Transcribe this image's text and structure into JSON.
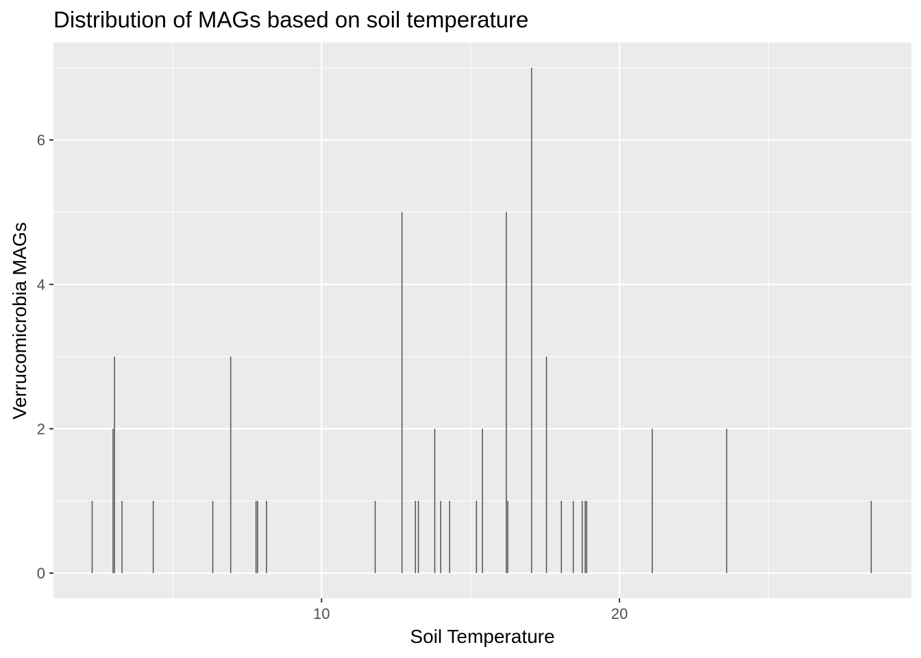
{
  "chart_data": {
    "type": "bar",
    "title": "Distribution of MAGs based on soil temperature",
    "xlabel": "Soil Temperature",
    "ylabel": "Verrucomicrobia MAGs",
    "xlim": [
      1.0,
      29.8
    ],
    "ylim": [
      -0.35,
      7.35
    ],
    "x_ticks": [
      10,
      20
    ],
    "y_ticks": [
      0,
      2,
      4,
      6
    ],
    "grid": true,
    "bar_color": "#595959",
    "panel_color": "#ebebeb",
    "grid_color": "#ffffff",
    "bars": [
      {
        "x": 2.3,
        "y": 1
      },
      {
        "x": 3.0,
        "y": 2
      },
      {
        "x": 3.05,
        "y": 3
      },
      {
        "x": 3.3,
        "y": 1
      },
      {
        "x": 4.35,
        "y": 1
      },
      {
        "x": 6.35,
        "y": 1
      },
      {
        "x": 6.95,
        "y": 3
      },
      {
        "x": 7.8,
        "y": 1
      },
      {
        "x": 7.85,
        "y": 1
      },
      {
        "x": 8.15,
        "y": 1
      },
      {
        "x": 11.8,
        "y": 1
      },
      {
        "x": 12.7,
        "y": 5
      },
      {
        "x": 13.15,
        "y": 1
      },
      {
        "x": 13.25,
        "y": 1
      },
      {
        "x": 13.8,
        "y": 2
      },
      {
        "x": 14.0,
        "y": 1
      },
      {
        "x": 14.3,
        "y": 1
      },
      {
        "x": 15.2,
        "y": 1
      },
      {
        "x": 15.4,
        "y": 2
      },
      {
        "x": 16.2,
        "y": 5
      },
      {
        "x": 16.25,
        "y": 1
      },
      {
        "x": 17.05,
        "y": 7
      },
      {
        "x": 17.55,
        "y": 3
      },
      {
        "x": 18.05,
        "y": 1
      },
      {
        "x": 18.45,
        "y": 1
      },
      {
        "x": 18.75,
        "y": 1
      },
      {
        "x": 18.85,
        "y": 1
      },
      {
        "x": 18.9,
        "y": 1
      },
      {
        "x": 21.1,
        "y": 2
      },
      {
        "x": 23.6,
        "y": 2
      },
      {
        "x": 28.45,
        "y": 1
      }
    ]
  }
}
